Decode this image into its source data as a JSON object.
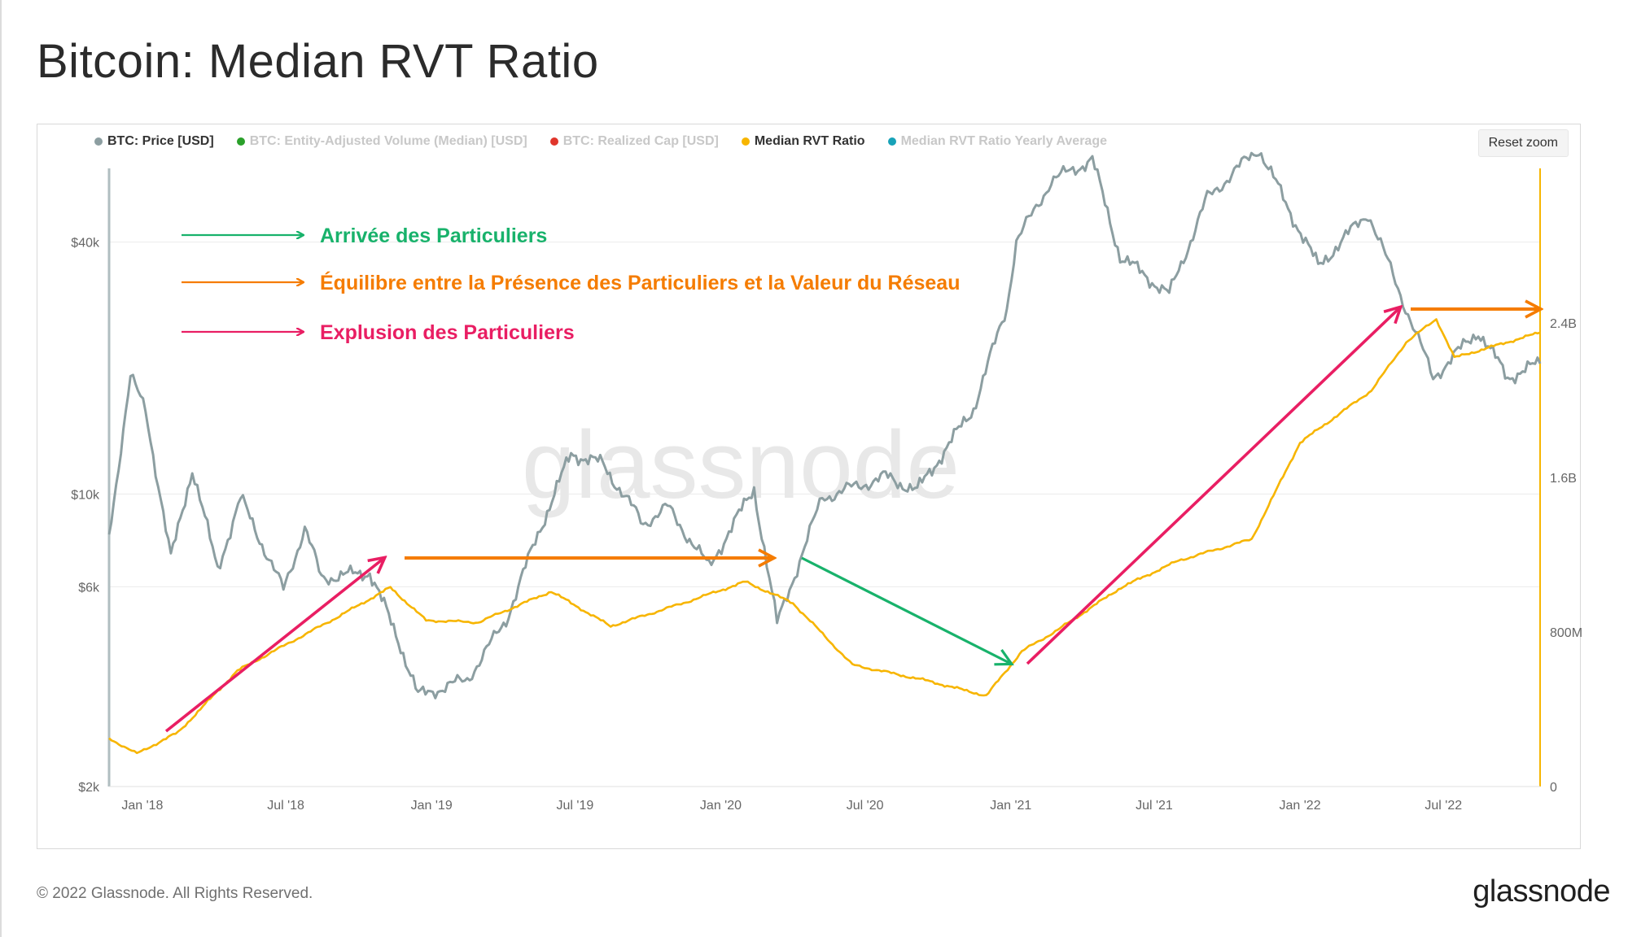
{
  "title": "Bitcoin: Median RVT Ratio",
  "legend": [
    {
      "label": "BTC: Price [USD]",
      "color": "#8c9ea1",
      "active": true
    },
    {
      "label": "BTC: Entity-Adjusted Volume (Median) [USD]",
      "color": "#2aa02a",
      "active": false
    },
    {
      "label": "BTC: Realized Cap [USD]",
      "color": "#e0352b",
      "active": false
    },
    {
      "label": "Median RVT Ratio",
      "color": "#f7b500",
      "active": true
    },
    {
      "label": "Median RVT Ratio Yearly Average",
      "color": "#17a2b8",
      "active": false
    }
  ],
  "reset_zoom": "Reset zoom",
  "watermark": "glassnode",
  "annotations": [
    {
      "label": "Arrivée des Particuliers",
      "color": "#18b26b"
    },
    {
      "label": "Équilibre entre la Présence des Particuliers et la Valeur du Réseau",
      "color": "#f57c00"
    },
    {
      "label": "Explusion des Particuliers",
      "color": "#e91e63"
    }
  ],
  "footer": {
    "copyright": "© 2022 Glassnode. All Rights Reserved.",
    "brand": "glassnode"
  },
  "chart_data": {
    "type": "line",
    "x_tick_labels": [
      "Jan '18",
      "Jul '18",
      "Jan '19",
      "Jul '19",
      "Jan '20",
      "Jul '20",
      "Jan '21",
      "Jul '21",
      "Jan '22",
      "Jul '22"
    ],
    "x_ticks": [
      "2018-01-01",
      "2018-07-01",
      "2019-01-01",
      "2019-07-01",
      "2020-01-01",
      "2020-07-01",
      "2021-01-01",
      "2021-07-01",
      "2022-01-01",
      "2022-07-01"
    ],
    "x_range": [
      "2017-11-20",
      "2022-10-31"
    ],
    "y_left": {
      "scale": "log",
      "range": [
        2000,
        60000
      ],
      "tick_values": [
        2000,
        6000,
        10000,
        40000
      ],
      "tick_labels": [
        "$2k",
        "$6k",
        "$10k",
        "$40k"
      ]
    },
    "y_right": {
      "scale": "linear",
      "range": [
        0,
        3200000000
      ],
      "tick_values": [
        0,
        800000000,
        1600000000,
        2400000000
      ],
      "tick_labels": [
        "0",
        "800M",
        "1.6B",
        "2.4B"
      ]
    },
    "series": [
      {
        "name": "BTC: Price [USD]",
        "color": "#8c9ea1",
        "axis": "left",
        "points": [
          [
            "2017-11-20",
            8000
          ],
          [
            "2017-12-17",
            19000
          ],
          [
            "2018-01-05",
            16000
          ],
          [
            "2018-02-06",
            7000
          ],
          [
            "2018-03-05",
            11500
          ],
          [
            "2018-04-06",
            6600
          ],
          [
            "2018-05-05",
            9800
          ],
          [
            "2018-06-28",
            5900
          ],
          [
            "2018-07-25",
            8300
          ],
          [
            "2018-08-15",
            6300
          ],
          [
            "2018-10-15",
            6500
          ],
          [
            "2018-11-20",
            4500
          ],
          [
            "2018-12-15",
            3300
          ],
          [
            "2019-02-15",
            3600
          ],
          [
            "2019-04-05",
            5000
          ],
          [
            "2019-05-15",
            8000
          ],
          [
            "2019-06-26",
            12500
          ],
          [
            "2019-08-05",
            11800
          ],
          [
            "2019-09-25",
            8500
          ],
          [
            "2019-10-26",
            9300
          ],
          [
            "2019-12-17",
            6700
          ],
          [
            "2020-02-12",
            10300
          ],
          [
            "2020-03-12",
            4900
          ],
          [
            "2020-05-08",
            9800
          ],
          [
            "2020-07-27",
            11000
          ],
          [
            "2020-09-05",
            10200
          ],
          [
            "2020-11-15",
            16000
          ],
          [
            "2020-12-27",
            28000
          ],
          [
            "2021-01-08",
            40000
          ],
          [
            "2021-02-21",
            56000
          ],
          [
            "2021-04-14",
            63000
          ],
          [
            "2021-05-19",
            37000
          ],
          [
            "2021-07-20",
            30000
          ],
          [
            "2021-09-06",
            51000
          ],
          [
            "2021-11-10",
            67000
          ],
          [
            "2021-12-20",
            47000
          ],
          [
            "2022-01-24",
            35000
          ],
          [
            "2022-03-28",
            47000
          ],
          [
            "2022-05-11",
            29000
          ],
          [
            "2022-06-18",
            19000
          ],
          [
            "2022-08-14",
            24500
          ],
          [
            "2022-09-20",
            19000
          ],
          [
            "2022-10-31",
            20500
          ]
        ]
      },
      {
        "name": "Median RVT Ratio",
        "color": "#f7b500",
        "axis": "right",
        "points": [
          [
            "2017-11-20",
            250000000
          ],
          [
            "2017-12-25",
            170000000
          ],
          [
            "2018-02-15",
            280000000
          ],
          [
            "2018-05-01",
            600000000
          ],
          [
            "2018-09-01",
            870000000
          ],
          [
            "2018-11-10",
            1030000000
          ],
          [
            "2018-12-25",
            860000000
          ],
          [
            "2019-03-01",
            850000000
          ],
          [
            "2019-06-01",
            1010000000
          ],
          [
            "2019-08-15",
            830000000
          ],
          [
            "2019-11-15",
            950000000
          ],
          [
            "2020-02-01",
            1060000000
          ],
          [
            "2020-04-01",
            950000000
          ],
          [
            "2020-06-15",
            630000000
          ],
          [
            "2020-09-15",
            550000000
          ],
          [
            "2020-12-01",
            470000000
          ],
          [
            "2021-01-15",
            700000000
          ],
          [
            "2021-03-01",
            810000000
          ],
          [
            "2021-05-20",
            1030000000
          ],
          [
            "2021-08-01",
            1170000000
          ],
          [
            "2021-11-01",
            1280000000
          ],
          [
            "2022-01-01",
            1780000000
          ],
          [
            "2022-04-01",
            2050000000
          ],
          [
            "2022-05-15",
            2300000000
          ],
          [
            "2022-06-22",
            2420000000
          ],
          [
            "2022-07-15",
            2220000000
          ],
          [
            "2022-10-31",
            2350000000
          ]
        ]
      }
    ]
  }
}
